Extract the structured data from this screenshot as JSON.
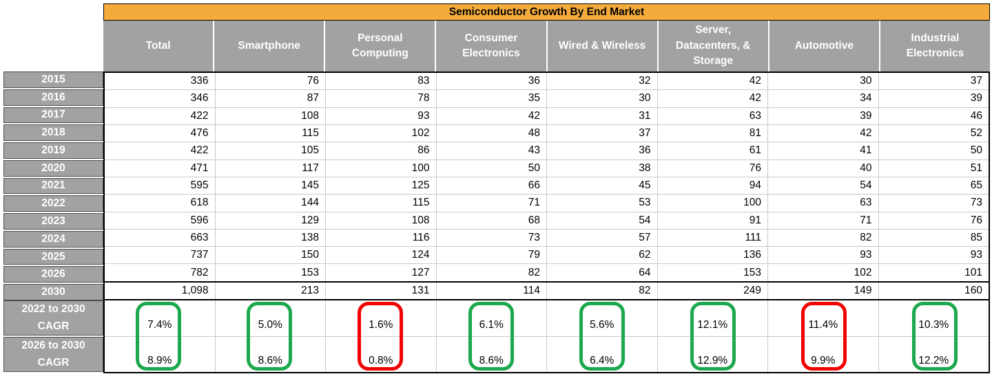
{
  "chart_data": {
    "type": "table",
    "title": "Semiconductor Growth By End Market",
    "columns": [
      "Total",
      "Smartphone",
      "Personal\nComputing",
      "Consumer\nElectronics",
      "Wired & Wireless",
      "Server,\nDatacenters, &\nStorage",
      "Automotive",
      "Industrial\nElectronics"
    ],
    "year_rows": [
      {
        "label": "2015",
        "values": [
          "336",
          "76",
          "83",
          "36",
          "32",
          "42",
          "30",
          "37"
        ]
      },
      {
        "label": "2016",
        "values": [
          "346",
          "87",
          "78",
          "35",
          "30",
          "42",
          "34",
          "39"
        ]
      },
      {
        "label": "2017",
        "values": [
          "422",
          "108",
          "93",
          "42",
          "31",
          "63",
          "39",
          "46"
        ]
      },
      {
        "label": "2018",
        "values": [
          "476",
          "115",
          "102",
          "48",
          "37",
          "81",
          "42",
          "52"
        ]
      },
      {
        "label": "2019",
        "values": [
          "422",
          "105",
          "86",
          "43",
          "36",
          "61",
          "41",
          "50"
        ]
      },
      {
        "label": "2020",
        "values": [
          "471",
          "117",
          "100",
          "50",
          "38",
          "76",
          "40",
          "51"
        ]
      },
      {
        "label": "2021",
        "values": [
          "595",
          "145",
          "125",
          "66",
          "45",
          "94",
          "54",
          "65"
        ]
      },
      {
        "label": "2022",
        "values": [
          "618",
          "144",
          "115",
          "71",
          "53",
          "100",
          "63",
          "73"
        ]
      },
      {
        "label": "2023",
        "values": [
          "596",
          "129",
          "108",
          "68",
          "54",
          "91",
          "71",
          "76"
        ]
      },
      {
        "label": "2024",
        "values": [
          "663",
          "138",
          "116",
          "73",
          "57",
          "111",
          "82",
          "85"
        ]
      },
      {
        "label": "2025",
        "values": [
          "737",
          "150",
          "124",
          "79",
          "62",
          "136",
          "93",
          "93"
        ]
      },
      {
        "label": "2026",
        "values": [
          "782",
          "153",
          "127",
          "82",
          "64",
          "153",
          "102",
          "101"
        ]
      },
      {
        "label": "2030",
        "values": [
          "1,098",
          "213",
          "131",
          "114",
          "82",
          "249",
          "149",
          "160"
        ]
      }
    ],
    "cagr_rows": [
      {
        "label_line1": "2022 to 2030",
        "label_line2": "CAGR",
        "values": [
          "7.4%",
          "5.0%",
          "1.6%",
          "6.1%",
          "5.6%",
          "12.1%",
          "11.4%",
          "10.3%"
        ]
      },
      {
        "label_line1": "2026 to 2030",
        "label_line2": "CAGR",
        "values": [
          "8.9%",
          "8.6%",
          "0.8%",
          "8.6%",
          "6.4%",
          "12.9%",
          "9.9%",
          "12.2%"
        ]
      }
    ],
    "highlight_boxes": [
      {
        "column": "Total",
        "color": "green"
      },
      {
        "column": "Smartphone",
        "color": "green"
      },
      {
        "column": "Personal Computing",
        "color": "red"
      },
      {
        "column": "Consumer Electronics",
        "color": "green"
      },
      {
        "column": "Wired & Wireless",
        "color": "green"
      },
      {
        "column": "Server, Datacenters, & Storage",
        "color": "green"
      },
      {
        "column": "Automotive",
        "color": "red"
      },
      {
        "column": "Industrial Electronics",
        "color": "green"
      }
    ],
    "colors": {
      "title_bg": "#F4AB3C",
      "header_bg": "#A2A2A2",
      "header_text": "#FFFFFF",
      "green": "#1CA84C",
      "red": "#F30000",
      "gridline": "#C9C9C9",
      "border": "#000000"
    }
  }
}
